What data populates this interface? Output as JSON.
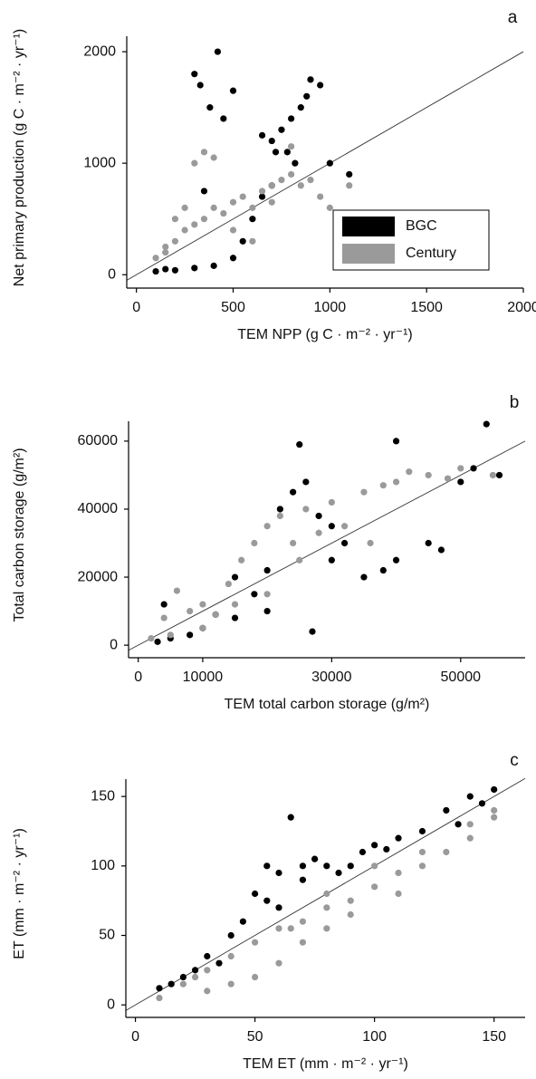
{
  "chart_data": [
    {
      "type": "scatter",
      "panel": "a",
      "xlabel": "TEM NPP  (g C · m⁻² · yr⁻¹)",
      "ylabel": "Net primary production (g C · m⁻² · yr⁻¹)",
      "xlim": [
        -50,
        2000
      ],
      "ylim": [
        -120,
        2220
      ],
      "xticks": [
        0,
        500,
        1000,
        1500,
        2000
      ],
      "yticks": [
        0,
        1000,
        2000
      ],
      "legend": "lower right",
      "series": [
        {
          "name": "BGC",
          "color": "#000000",
          "x": [
            300,
            330,
            420,
            380,
            500,
            450,
            700,
            750,
            800,
            850,
            900,
            950,
            780,
            820,
            700,
            650,
            600,
            550,
            500,
            400,
            300,
            200,
            150,
            100,
            1000,
            1100,
            880,
            720,
            650,
            350
          ],
          "values": [
            1800,
            1700,
            2000,
            1500,
            1650,
            1400,
            1200,
            1300,
            1400,
            1500,
            1750,
            1700,
            1100,
            1000,
            800,
            700,
            500,
            300,
            150,
            80,
            60,
            40,
            50,
            30,
            1000,
            900,
            1600,
            1100,
            1250,
            750
          ]
        },
        {
          "name": "Century",
          "color": "#9a9a9a",
          "x": [
            100,
            150,
            200,
            250,
            300,
            350,
            400,
            450,
            500,
            550,
            600,
            650,
            700,
            750,
            800,
            850,
            900,
            950,
            1000,
            1100,
            300,
            350,
            400,
            250,
            500,
            600,
            700,
            800,
            200,
            150
          ],
          "values": [
            150,
            250,
            300,
            400,
            450,
            500,
            600,
            550,
            650,
            700,
            600,
            750,
            800,
            850,
            900,
            800,
            850,
            700,
            600,
            800,
            1000,
            1100,
            1050,
            600,
            400,
            300,
            650,
            1150,
            500,
            200
          ]
        }
      ]
    },
    {
      "type": "scatter",
      "panel": "b",
      "xlabel": "TEM  total carbon storage (g/m²)",
      "ylabel": "Total carbon storage (g/m²)",
      "xlim": [
        -1500,
        60000
      ],
      "ylim": [
        -3700,
        68500
      ],
      "xticks": [
        0,
        10000,
        30000,
        50000
      ],
      "yticks": [
        0,
        20000,
        40000,
        60000
      ],
      "series": [
        {
          "color": "#000000",
          "x": [
            3000,
            5000,
            8000,
            10000,
            15000,
            18000,
            20000,
            22000,
            24000,
            25000,
            26000,
            28000,
            30000,
            32000,
            35000,
            38000,
            40000,
            45000,
            47000,
            50000,
            52000,
            54000,
            56000,
            27000,
            20000,
            15000,
            4000,
            40000,
            12000,
            30000
          ],
          "values": [
            1000,
            2000,
            3000,
            5000,
            8000,
            15000,
            22000,
            40000,
            45000,
            59000,
            48000,
            38000,
            35000,
            30000,
            20000,
            22000,
            25000,
            30000,
            28000,
            48000,
            52000,
            65000,
            50000,
            4000,
            10000,
            20000,
            12000,
            60000,
            9000,
            25000
          ]
        },
        {
          "color": "#9a9a9a",
          "x": [
            2000,
            4000,
            6000,
            8000,
            10000,
            12000,
            14000,
            16000,
            18000,
            20000,
            22000,
            24000,
            26000,
            28000,
            30000,
            32000,
            35000,
            38000,
            40000,
            45000,
            48000,
            50000,
            55000,
            20000,
            25000,
            10000,
            5000,
            15000,
            42000,
            36000
          ],
          "values": [
            2000,
            8000,
            16000,
            10000,
            12000,
            9000,
            18000,
            25000,
            30000,
            35000,
            38000,
            30000,
            40000,
            33000,
            42000,
            35000,
            45000,
            47000,
            48000,
            50000,
            49000,
            52000,
            50000,
            15000,
            25000,
            5000,
            3000,
            12000,
            51000,
            30000
          ]
        }
      ]
    },
    {
      "type": "scatter",
      "panel": "c",
      "xlabel": "TEM ET (mm · m⁻² · yr⁻¹)",
      "ylabel": "ET  (mm · m⁻² · yr⁻¹)",
      "xlim": [
        -4,
        163
      ],
      "ylim": [
        -9,
        169
      ],
      "xticks": [
        0,
        50,
        100,
        150
      ],
      "yticks": [
        0,
        50,
        100,
        150
      ],
      "series": [
        {
          "color": "#000000",
          "x": [
            10,
            20,
            30,
            40,
            45,
            50,
            55,
            60,
            65,
            70,
            75,
            80,
            85,
            90,
            95,
            100,
            110,
            120,
            130,
            140,
            150,
            145,
            55,
            60,
            70,
            35,
            25,
            15,
            105,
            135
          ],
          "values": [
            12,
            20,
            35,
            50,
            60,
            80,
            100,
            95,
            135,
            100,
            105,
            100,
            95,
            100,
            110,
            115,
            120,
            125,
            140,
            150,
            155,
            145,
            75,
            70,
            90,
            30,
            25,
            15,
            112,
            130
          ]
        },
        {
          "color": "#9a9a9a",
          "x": [
            10,
            20,
            30,
            40,
            50,
            60,
            70,
            80,
            90,
            100,
            110,
            120,
            130,
            140,
            150,
            60,
            70,
            80,
            90,
            50,
            40,
            30,
            80,
            100,
            120,
            140,
            25,
            65,
            110,
            150
          ],
          "values": [
            5,
            15,
            25,
            35,
            45,
            55,
            60,
            70,
            75,
            85,
            95,
            100,
            110,
            120,
            135,
            30,
            45,
            55,
            65,
            20,
            15,
            10,
            80,
            100,
            110,
            130,
            20,
            55,
            80,
            140
          ]
        }
      ]
    }
  ]
}
